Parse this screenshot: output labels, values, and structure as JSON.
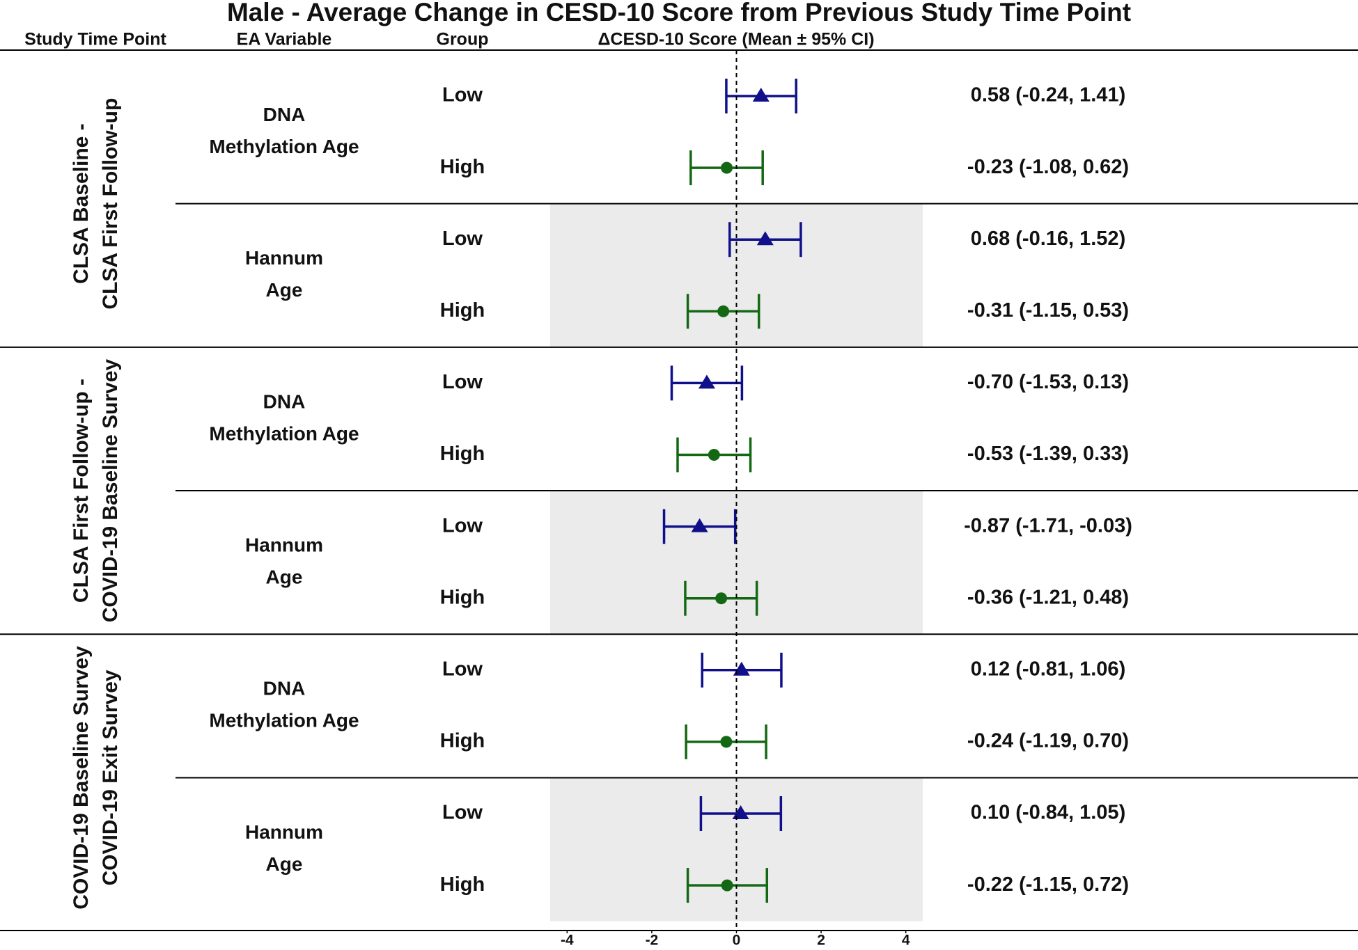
{
  "chart_data": {
    "type": "forest",
    "title": "Male - Average Change in CESD-10 Score from Previous Study Time Point",
    "headers": [
      "Study Time Point",
      "EA Variable",
      "Group",
      "ΔCESD-10 Score (Mean ± 95% CI)"
    ],
    "xlim": [
      -4.4,
      4.4
    ],
    "xticks": [
      -4,
      -2,
      0,
      2,
      4
    ],
    "reference_line": 0,
    "sections": [
      {
        "name": [
          "CLSA Baseline -",
          "CLSA First Follow-up"
        ],
        "variables": [
          {
            "name": [
              "DNA",
              "Methylation Age"
            ],
            "shaded": false,
            "rows": [
              {
                "group": "Low",
                "mean": 0.58,
                "lower": -0.24,
                "upper": 1.41,
                "label": "0.58 (-0.24, 1.41)",
                "color": "#10108a",
                "marker": "triangle"
              },
              {
                "group": "High",
                "mean": -0.23,
                "lower": -1.08,
                "upper": 0.62,
                "label": "-0.23 (-1.08, 0.62)",
                "color": "#146814",
                "marker": "circle"
              }
            ]
          },
          {
            "name": [
              "Hannum",
              "Age"
            ],
            "shaded": true,
            "rows": [
              {
                "group": "Low",
                "mean": 0.68,
                "lower": -0.16,
                "upper": 1.52,
                "label": "0.68 (-0.16, 1.52)",
                "color": "#10108a",
                "marker": "triangle"
              },
              {
                "group": "High",
                "mean": -0.31,
                "lower": -1.15,
                "upper": 0.53,
                "label": "-0.31 (-1.15, 0.53)",
                "color": "#146814",
                "marker": "circle"
              }
            ]
          }
        ]
      },
      {
        "name": [
          "CLSA First Follow-up -",
          "COVID-19 Baseline Survey"
        ],
        "variables": [
          {
            "name": [
              "DNA",
              "Methylation Age"
            ],
            "shaded": false,
            "rows": [
              {
                "group": "Low",
                "mean": -0.7,
                "lower": -1.53,
                "upper": 0.13,
                "label": "-0.70 (-1.53, 0.13)",
                "color": "#10108a",
                "marker": "triangle"
              },
              {
                "group": "High",
                "mean": -0.53,
                "lower": -1.39,
                "upper": 0.33,
                "label": "-0.53 (-1.39, 0.33)",
                "color": "#146814",
                "marker": "circle"
              }
            ]
          },
          {
            "name": [
              "Hannum",
              "Age"
            ],
            "shaded": true,
            "rows": [
              {
                "group": "Low",
                "mean": -0.87,
                "lower": -1.71,
                "upper": -0.03,
                "label": "-0.87 (-1.71, -0.03)",
                "color": "#10108a",
                "marker": "triangle"
              },
              {
                "group": "High",
                "mean": -0.36,
                "lower": -1.21,
                "upper": 0.48,
                "label": "-0.36 (-1.21, 0.48)",
                "color": "#146814",
                "marker": "circle"
              }
            ]
          }
        ]
      },
      {
        "name": [
          "COVID-19 Baseline Survey",
          "COVID-19 Exit Survey"
        ],
        "variables": [
          {
            "name": [
              "DNA",
              "Methylation Age"
            ],
            "shaded": false,
            "rows": [
              {
                "group": "Low",
                "mean": 0.12,
                "lower": -0.81,
                "upper": 1.06,
                "label": "0.12 (-0.81, 1.06)",
                "color": "#10108a",
                "marker": "triangle"
              },
              {
                "group": "High",
                "mean": -0.24,
                "lower": -1.19,
                "upper": 0.7,
                "label": "-0.24 (-1.19, 0.70)",
                "color": "#146814",
                "marker": "circle"
              }
            ]
          },
          {
            "name": [
              "Hannum",
              "Age"
            ],
            "shaded": true,
            "rows": [
              {
                "group": "Low",
                "mean": 0.1,
                "lower": -0.84,
                "upper": 1.05,
                "label": "0.10 (-0.84, 1.05)",
                "color": "#10108a",
                "marker": "triangle"
              },
              {
                "group": "High",
                "mean": -0.22,
                "lower": -1.15,
                "upper": 0.72,
                "label": "-0.22 (-1.15, 0.72)",
                "color": "#146814",
                "marker": "circle"
              }
            ]
          }
        ]
      }
    ]
  }
}
